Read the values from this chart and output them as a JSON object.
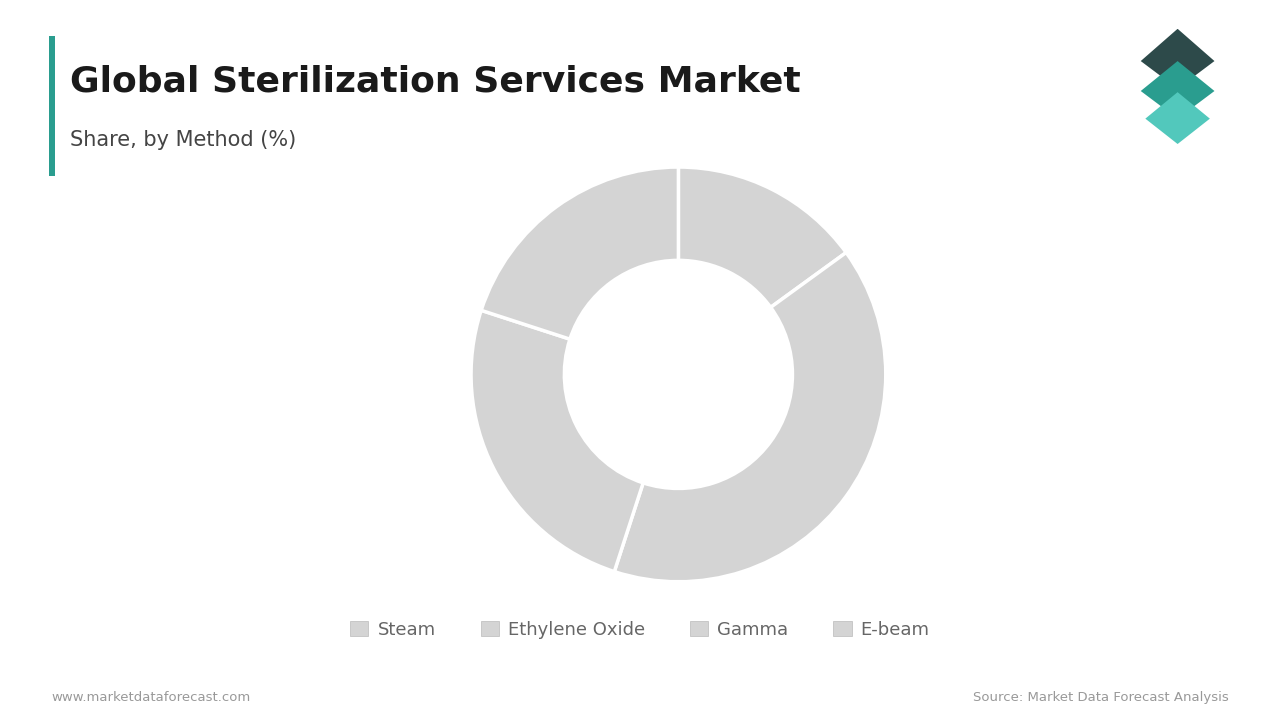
{
  "title": "Global Sterilization Services Market",
  "subtitle": "Share, by Method (%)",
  "segments": [
    "Steam",
    "Ethylene Oxide",
    "Gamma",
    "E-beam"
  ],
  "values": [
    15,
    40,
    25,
    20
  ],
  "colors": [
    "#d4d4d4",
    "#d4d4d4",
    "#d4d4d4",
    "#d4d4d4"
  ],
  "wedge_edge_color": "#ffffff",
  "background_color": "#ffffff",
  "title_fontsize": 26,
  "subtitle_fontsize": 15,
  "legend_fontsize": 13,
  "footer_left": "www.marketdataforecast.com",
  "footer_right": "Source: Market Data Forecast Analysis",
  "accent_color": "#2a9d8f",
  "title_bar_color": "#2a9d8f",
  "donut_hole_ratio": 0.55,
  "start_angle": 90
}
